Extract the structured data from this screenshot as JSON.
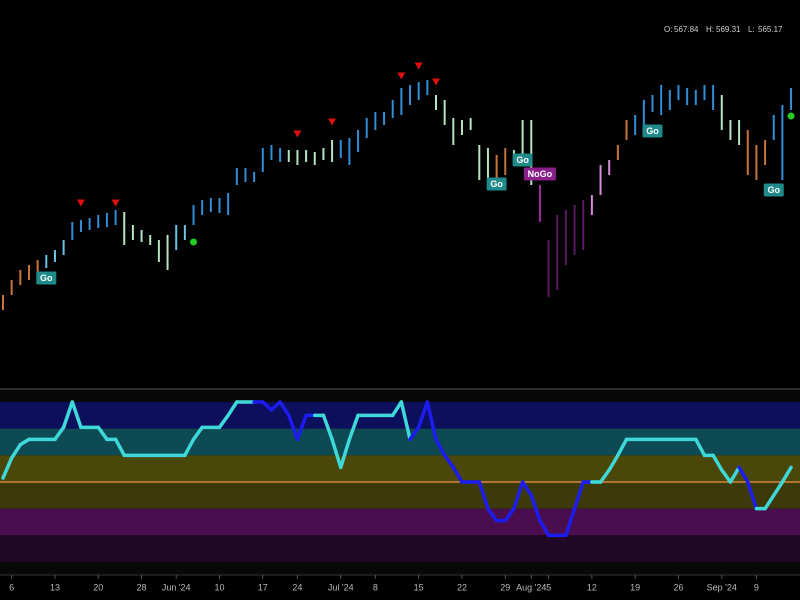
{
  "chart_data": {
    "type": "ohlc",
    "quote": [
      {
        "label": "O:",
        "value": 567.84
      },
      {
        "label": "H:",
        "value": 569.31
      },
      {
        "label": "L:",
        "value": 565.17
      }
    ],
    "categories": [
      null,
      "6",
      null,
      null,
      null,
      null,
      "13",
      null,
      null,
      null,
      null,
      "20",
      null,
      null,
      null,
      null,
      "28",
      null,
      null,
      null,
      "Jun '24",
      null,
      null,
      null,
      null,
      "10",
      null,
      null,
      null,
      null,
      "17",
      null,
      null,
      null,
      "24",
      null,
      null,
      null,
      null,
      "Jul '24",
      null,
      null,
      null,
      "8",
      null,
      null,
      null,
      null,
      "15",
      null,
      null,
      null,
      null,
      "22",
      null,
      null,
      null,
      null,
      "29",
      null,
      null,
      "Aug '24",
      null,
      "5",
      null,
      null,
      null,
      null,
      "12",
      null,
      null,
      null,
      null,
      "19",
      null,
      null,
      null,
      null,
      "26",
      null,
      null,
      null,
      null,
      "Sep '24",
      null,
      null,
      null,
      "9",
      null,
      null,
      null,
      null
    ],
    "high": [
      515.25,
      519,
      521.5,
      522.75,
      524,
      525.25,
      526.5,
      529,
      533.5,
      534,
      534.5,
      535.25,
      535.75,
      536.5,
      536,
      532.75,
      531.5,
      530.25,
      529,
      530.25,
      532.75,
      532.75,
      537.75,
      539,
      539.5,
      539.5,
      540.75,
      547,
      547,
      546,
      552,
      552.75,
      552,
      551.5,
      551.5,
      551.5,
      551,
      552,
      554,
      554,
      554.5,
      556.5,
      559.5,
      561,
      561,
      564,
      567,
      567.75,
      568.5,
      569,
      565.25,
      564,
      559.5,
      559,
      559.5,
      552.75,
      552,
      550.25,
      552,
      551.5,
      559,
      559,
      542.75,
      529,
      535.25,
      536.5,
      537.75,
      539,
      540.25,
      547.75,
      549,
      552.75,
      559,
      560.25,
      564,
      565.25,
      567.75,
      566.5,
      567.75,
      567,
      566.5,
      567.75,
      567.75,
      565.25,
      559,
      559,
      556.5,
      552.75,
      554,
      560.25,
      562.75,
      567
    ],
    "low": [
      511.5,
      515.25,
      517.75,
      519,
      520.25,
      522,
      523.5,
      525.25,
      529,
      531,
      531.5,
      532,
      532.25,
      532.75,
      527.75,
      529,
      528.5,
      527.75,
      523.5,
      521.5,
      526.5,
      529,
      532.75,
      535.25,
      536,
      535.75,
      535.25,
      542.75,
      543.5,
      543.5,
      546,
      549,
      548.5,
      548.5,
      547.75,
      548.5,
      547.75,
      549,
      548.5,
      549.5,
      547.75,
      551,
      554.5,
      556.5,
      557.75,
      559.5,
      560.25,
      562.75,
      564,
      565.25,
      561.5,
      557.75,
      552.75,
      555.25,
      556.5,
      544,
      542.75,
      544,
      545.25,
      547.75,
      547.75,
      542.75,
      533.5,
      514.75,
      516.5,
      522.75,
      525.25,
      526.5,
      535.25,
      540.25,
      545.25,
      549,
      554,
      555.25,
      557.75,
      561,
      560.25,
      561.5,
      564,
      562.75,
      562.75,
      564,
      561.5,
      556.5,
      554,
      552.75,
      545.25,
      544,
      547.75,
      554,
      544,
      561.5
    ],
    "bar_colors": [
      "#c8743c",
      "#c8743c",
      "#c8743c",
      "#c8743c",
      "#c8743c",
      "#6cc3e8",
      "#6cc3e8",
      "#6cc3e8",
      "#2f8fd8",
      "#2f8fd8",
      "#2f8fd8",
      "#2f8fd8",
      "#2f8fd8",
      "#2f8fd8",
      "#b6e3c0",
      "#b6e3c0",
      "#b6e3c0",
      "#b6e3c0",
      "#b6e3c0",
      "#b6e3c0",
      "#6cc3e8",
      "#6cc3e8",
      "#2f8fd8",
      "#2f8fd8",
      "#2f8fd8",
      "#2f8fd8",
      "#2f8fd8",
      "#2f8fd8",
      "#2f8fd8",
      "#2f8fd8",
      "#2f8fd8",
      "#2f8fd8",
      "#2f8fd8",
      "#b6e3c0",
      "#b6e3c0",
      "#b6e3c0",
      "#b6e3c0",
      "#b6e3c0",
      "#b6e3c0",
      "#2f8fd8",
      "#2f8fd8",
      "#2f8fd8",
      "#2f8fd8",
      "#2f8fd8",
      "#2f8fd8",
      "#2f8fd8",
      "#2f8fd8",
      "#2f8fd8",
      "#2f8fd8",
      "#2f8fd8",
      "#b6e3c0",
      "#b6e3c0",
      "#b6e3c0",
      "#b6e3c0",
      "#b6e3c0",
      "#b6e3c0",
      "#b6e3c0",
      "#c8743c",
      "#c8743c",
      "#b6e3c0",
      "#b6e3c0",
      "#b6e3c0",
      "#9b2d9f",
      "#5c1a63",
      "#5c1a63",
      "#5c1a63",
      "#5c1a63",
      "#5c1a63",
      "#d98ad9",
      "#d98ad9",
      "#d98ad9",
      "#c8743c",
      "#c8743c",
      "#2f8fd8",
      "#2f8fd8",
      "#2f8fd8",
      "#2f8fd8",
      "#2f8fd8",
      "#2f8fd8",
      "#2f8fd8",
      "#2f8fd8",
      "#2f8fd8",
      "#2f8fd8",
      "#b6e3c0",
      "#b6e3c0",
      "#b6e3c0",
      "#c8743c",
      "#c8743c",
      "#c8743c",
      "#2f8fd8",
      "#2f8fd8",
      "#2f8fd8"
    ],
    "ylim": [
      491.5,
      589
    ],
    "annotations": [
      {
        "text": "Go",
        "index": 5,
        "value": 519.5,
        "color": "#1f8a8a"
      },
      {
        "text": "Go",
        "index": 57,
        "value": 543,
        "color": "#1f8a8a"
      },
      {
        "text": "Go",
        "index": 60,
        "value": 549,
        "color": "#1f8a8a"
      },
      {
        "text": "NoGo",
        "index": 62,
        "value": 545.5,
        "color": "#8a1e8a"
      },
      {
        "text": "Go",
        "index": 75,
        "value": 556.25,
        "color": "#1f8a8a"
      },
      {
        "text": "Go",
        "index": 89,
        "value": 541.5,
        "color": "#1f8a8a"
      }
    ],
    "signals": [
      {
        "index": 9,
        "value": 538.25,
        "shape": "triangle",
        "color": "#e01010"
      },
      {
        "index": 13,
        "value": 538.25,
        "shape": "triangle",
        "color": "#e01010"
      },
      {
        "index": 34,
        "value": 555.5,
        "shape": "triangle",
        "color": "#e01010"
      },
      {
        "index": 38,
        "value": 558.5,
        "shape": "triangle",
        "color": "#e01010"
      },
      {
        "index": 46,
        "value": 570,
        "shape": "triangle",
        "color": "#e01010"
      },
      {
        "index": 48,
        "value": 572.5,
        "shape": "triangle",
        "color": "#e01010"
      },
      {
        "index": 50,
        "value": 568.5,
        "shape": "triangle",
        "color": "#e01010"
      },
      {
        "index": 22,
        "value": 528.5,
        "shape": "dot",
        "color": "#22cc22"
      },
      {
        "index": 91,
        "value": 560,
        "shape": "dot",
        "color": "#22cc22"
      }
    ],
    "oscillator": {
      "ylim": [
        -6,
        6
      ],
      "zero_line_color": "#d8843a",
      "bands": [
        {
          "from": 4,
          "to": 6,
          "color": "#0c0f5c"
        },
        {
          "from": 2,
          "to": 4,
          "color": "#0e4a54"
        },
        {
          "from": 0,
          "to": 2,
          "color": "#4a470a"
        },
        {
          "from": -2,
          "to": 0,
          "color": "#3c3a0a"
        },
        {
          "from": -4,
          "to": -2,
          "color": "#4a0d4e"
        },
        {
          "from": -6,
          "to": -4,
          "color": "#200726"
        }
      ],
      "values": [
        0.3,
        1.8,
        2.8,
        3.2,
        3.2,
        3.2,
        3.2,
        4.1,
        6,
        4.1,
        4.1,
        4.1,
        3.2,
        3.2,
        2,
        2,
        2,
        2,
        2,
        2,
        2,
        2,
        3.2,
        4.1,
        4.1,
        4.1,
        5,
        6,
        6,
        6,
        6,
        5.4,
        6,
        5,
        3.2,
        5,
        5,
        5,
        3.2,
        1.1,
        3.2,
        5,
        5,
        5,
        5,
        5,
        6,
        3.2,
        4.1,
        6,
        3.2,
        2,
        1.1,
        0,
        0,
        0,
        -2,
        -2.9,
        -2.9,
        -2,
        0,
        -1,
        -2.9,
        -4,
        -4,
        -4,
        -2,
        0,
        0,
        0,
        0.9,
        2,
        3.2,
        3.2,
        3.2,
        3.2,
        3.2,
        3.2,
        3.2,
        3.2,
        3.2,
        2,
        2,
        0.9,
        0,
        1.1,
        0,
        -2,
        -2,
        -1,
        0,
        1.1
      ],
      "colors": [
        "#3fd8d8",
        "#3fd8d8",
        "#3fd8d8",
        "#3fd8d8",
        "#3fd8d8",
        "#3fd8d8",
        "#3fd8d8",
        "#3fd8d8",
        "#3fd8d8",
        "#3fd8d8",
        "#3fd8d8",
        "#3fd8d8",
        "#3fd8d8",
        "#3fd8d8",
        "#3fd8d8",
        "#3fd8d8",
        "#3fd8d8",
        "#3fd8d8",
        "#3fd8d8",
        "#3fd8d8",
        "#3fd8d8",
        "#3fd8d8",
        "#3fd8d8",
        "#3fd8d8",
        "#3fd8d8",
        "#3fd8d8",
        "#3fd8d8",
        "#3fd8d8",
        "#3fd8d8",
        "#3fd8d8",
        "#1c1cf0",
        "#1c1cf0",
        "#1c1cf0",
        "#1c1cf0",
        "#1c1cf0",
        "#1c1cf0",
        "#1c1cf0",
        "#3fd8d8",
        "#3fd8d8",
        "#3fd8d8",
        "#3fd8d8",
        "#3fd8d8",
        "#3fd8d8",
        "#3fd8d8",
        "#3fd8d8",
        "#3fd8d8",
        "#3fd8d8",
        "#3fd8d8",
        "#1c1cf0",
        "#1c1cf0",
        "#1c1cf0",
        "#1c1cf0",
        "#1c1cf0",
        "#1c1cf0",
        "#1c1cf0",
        "#1c1cf0",
        "#1c1cf0",
        "#1c1cf0",
        "#1c1cf0",
        "#1c1cf0",
        "#1c1cf0",
        "#1c1cf0",
        "#1c1cf0",
        "#1c1cf0",
        "#1c1cf0",
        "#1c1cf0",
        "#1c1cf0",
        "#1c1cf0",
        "#1c1cf0",
        "#3fd8d8",
        "#3fd8d8",
        "#3fd8d8",
        "#3fd8d8",
        "#3fd8d8",
        "#3fd8d8",
        "#3fd8d8",
        "#3fd8d8",
        "#3fd8d8",
        "#3fd8d8",
        "#3fd8d8",
        "#3fd8d8",
        "#3fd8d8",
        "#3fd8d8",
        "#3fd8d8",
        "#3fd8d8",
        "#3fd8d8",
        "#1c1cf0",
        "#1c1cf0",
        "#3fd8d8",
        "#3fd8d8",
        "#3fd8d8",
        "#3fd8d8"
      ]
    }
  }
}
